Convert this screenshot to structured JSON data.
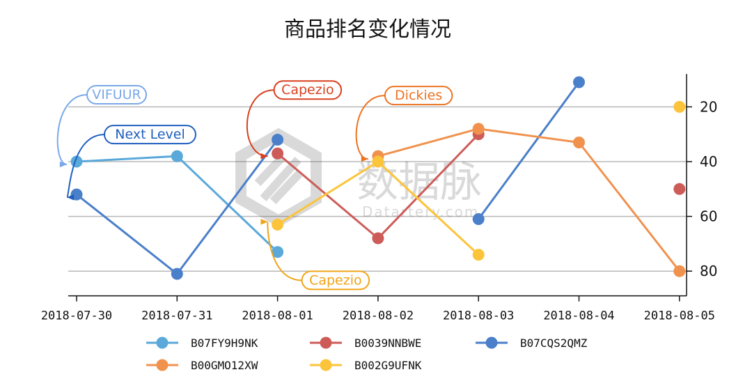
{
  "chart_data": {
    "type": "line",
    "title": "商品排名变化情况",
    "categories": [
      "2018-07-30",
      "2018-07-31",
      "2018-08-01",
      "2018-08-02",
      "2018-08-03",
      "2018-08-04",
      "2018-08-05"
    ],
    "y_ticks": [
      20,
      40,
      60,
      80
    ],
    "ylim": [
      89,
      8
    ],
    "y_inverted": true,
    "y_axis_position": "right",
    "grid": "horizontal",
    "legend_position": "bottom",
    "series": [
      {
        "name": "B07FY9H9NK",
        "color": "#5aa9da",
        "values": [
          40,
          38,
          73,
          null,
          null,
          null,
          null
        ]
      },
      {
        "name": "B0039NNBWE",
        "color": "#cd5c58",
        "values": [
          null,
          null,
          37,
          68,
          30,
          null,
          50
        ]
      },
      {
        "name": "B07CQS2QMZ",
        "color": "#4a7fc9",
        "values": [
          52,
          81,
          32,
          null,
          61,
          11,
          null
        ]
      },
      {
        "name": "B00GMO12XW",
        "color": "#f0924e",
        "values": [
          null,
          null,
          null,
          38,
          28,
          33,
          80
        ]
      },
      {
        "name": "B002G9UFNK",
        "color": "#fcc43b",
        "values": [
          null,
          null,
          63,
          40,
          74,
          null,
          20
        ]
      }
    ],
    "annotations": [
      {
        "text": "VIFUUR",
        "color": "#7aa8e8",
        "series": 0,
        "index": 0
      },
      {
        "text": "Next Level",
        "color": "#1f5fbf",
        "series": 2,
        "index": 0
      },
      {
        "text": "Capezio",
        "color": "#d8401e",
        "series": 1,
        "index": 2
      },
      {
        "text": "Dickies",
        "color": "#ec7322",
        "series": 3,
        "index": 3
      },
      {
        "text": "Capezio",
        "color": "#f0a416",
        "series": 4,
        "index": 2
      }
    ]
  },
  "watermark": {
    "brand": "数据脉",
    "url": "Datartery.com"
  }
}
